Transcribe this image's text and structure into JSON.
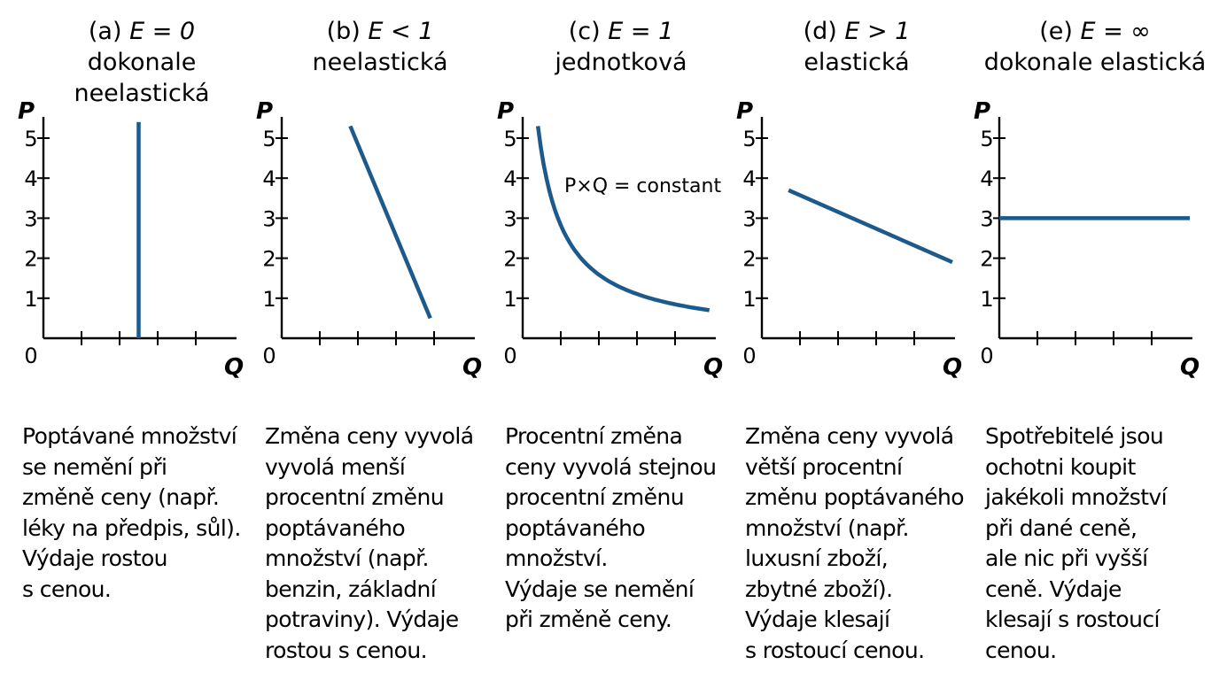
{
  "chart_data": [
    {
      "type": "line",
      "label": "(a)",
      "elasticity": "E = 0",
      "title_lines": [
        "dokonale",
        "neelastická"
      ],
      "xlabel": "Q",
      "ylabel": "P",
      "origin_label": "0",
      "y_ticks": [
        1,
        2,
        3,
        4,
        5
      ],
      "xlim": [
        0,
        5
      ],
      "ylim": [
        0,
        5.5
      ],
      "series": [
        {
          "name": "demand",
          "shape": "vertical",
          "x": [
            2.5,
            2.5
          ],
          "y": [
            0,
            5.4
          ]
        }
      ],
      "description": "Poptávané množství\nse nemění při\nzměně ceny (např.\nléky na předpis, sůl).\nVýdaje rostou\ns cenou."
    },
    {
      "type": "line",
      "label": "(b)",
      "elasticity": "E < 1",
      "title_lines": [
        "neelastická"
      ],
      "xlabel": "Q",
      "ylabel": "P",
      "origin_label": "0",
      "y_ticks": [
        1,
        2,
        3,
        4,
        5
      ],
      "xlim": [
        0,
        5
      ],
      "ylim": [
        0,
        5.5
      ],
      "series": [
        {
          "name": "demand",
          "shape": "linear",
          "x": [
            1.8,
            3.9
          ],
          "y": [
            5.3,
            0.5
          ]
        }
      ],
      "description": "Změna ceny vyvolá\nvyvolá menší\nprocentní změnu\npoptávaného\nmnožství (např.\nbenzin, základní\npotraviny). Výdaje\nrostou s cenou."
    },
    {
      "type": "line",
      "label": "(c)",
      "elasticity": "E = 1",
      "title_lines": [
        "jednotková"
      ],
      "xlabel": "Q",
      "ylabel": "P",
      "origin_label": "0",
      "y_ticks": [
        1,
        2,
        3,
        4,
        5
      ],
      "xlim": [
        0,
        5
      ],
      "ylim": [
        0,
        5.5
      ],
      "annotation": "P×Q = constant",
      "series": [
        {
          "name": "demand",
          "shape": "hyperbola",
          "x_start": 0.4,
          "x_end": 4.9,
          "y_start": 5.3,
          "y_end": 0.7
        }
      ],
      "description": "Procentní změna\nceny vyvolá stejnou\nprocentní změnu\npoptávaného\nmnožství.\nVýdaje se nemění\npři změně ceny."
    },
    {
      "type": "line",
      "label": "(d)",
      "elasticity": "E > 1",
      "title_lines": [
        "elastická"
      ],
      "xlabel": "Q",
      "ylabel": "P",
      "origin_label": "0",
      "y_ticks": [
        1,
        2,
        3,
        4,
        5
      ],
      "xlim": [
        0,
        5
      ],
      "ylim": [
        0,
        5.5
      ],
      "series": [
        {
          "name": "demand",
          "shape": "linear",
          "x": [
            0.7,
            5.0
          ],
          "y": [
            3.7,
            1.9
          ]
        }
      ],
      "description": "Změna ceny vyvolá\nvětší procentní\nzměnu poptávaného\nmnožství (např.\nluxusní zboží,\nzbytné zboží).\nVýdaje klesají\ns rostoucí cenou."
    },
    {
      "type": "line",
      "label": "(e)",
      "elasticity": "E = ∞",
      "title_lines": [
        "dokonale elastická"
      ],
      "xlabel": "Q",
      "ylabel": "P",
      "origin_label": "0",
      "y_ticks": [
        1,
        2,
        3,
        4,
        5
      ],
      "xlim": [
        0,
        5
      ],
      "ylim": [
        0,
        5.5
      ],
      "series": [
        {
          "name": "demand",
          "shape": "horizontal",
          "x": [
            0,
            5.0
          ],
          "y": [
            3,
            3
          ]
        }
      ],
      "description": "Spotřebitelé jsou\nochotni koupit\njakékoli množství\npři dané ceně,\nale nic při vyšší\nceně.  Výdaje\nklesají s rostoucí\ncenou."
    }
  ],
  "colors": {
    "curve": "#1d5a8c",
    "axis": "#000000"
  }
}
